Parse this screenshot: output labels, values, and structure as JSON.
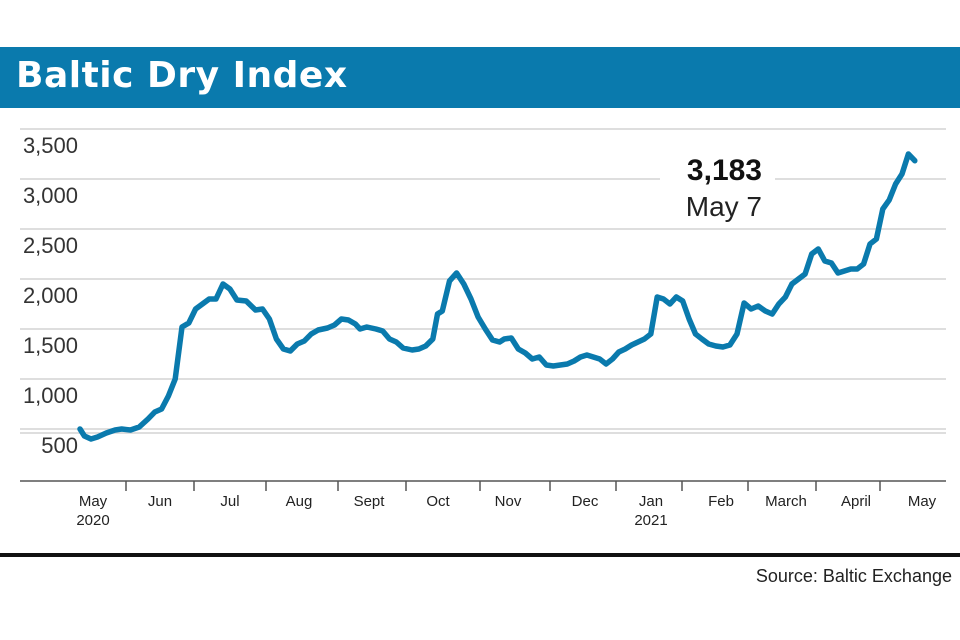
{
  "header": {
    "title": "Baltic Dry Index"
  },
  "source": "Source: Baltic Exchange",
  "colors": {
    "banner": "#0a7aad",
    "line": "#0a7aad",
    "grid": "#d4d4d4"
  },
  "chart_data": {
    "type": "line",
    "title": "Baltic Dry Index",
    "xlabel": "",
    "ylabel": "",
    "ylim": [
      100,
      3550
    ],
    "yticks": [
      {
        "value": 500,
        "label": "500"
      },
      {
        "value": 1000,
        "label": "1,000"
      },
      {
        "value": 1500,
        "label": "1,500"
      },
      {
        "value": 2000,
        "label": "2,000"
      },
      {
        "value": 2500,
        "label": "2,500"
      },
      {
        "value": 3000,
        "label": "3,000"
      },
      {
        "value": 3500,
        "label": "3,500"
      }
    ],
    "xlim": [
      "2020-05-01",
      "2021-05-31"
    ],
    "xticks": [
      {
        "date": "2020-05-01",
        "label": "May",
        "sublabel": "2020"
      },
      {
        "date": "2020-06-01",
        "label": "Jun"
      },
      {
        "date": "2020-07-01",
        "label": "Jul"
      },
      {
        "date": "2020-08-01",
        "label": "Aug"
      },
      {
        "date": "2020-09-01",
        "label": "Sept"
      },
      {
        "date": "2020-10-01",
        "label": "Oct"
      },
      {
        "date": "2020-11-01",
        "label": "Nov"
      },
      {
        "date": "2020-12-01",
        "label": "Dec"
      },
      {
        "date": "2021-01-01",
        "label": "Jan",
        "sublabel": "2021"
      },
      {
        "date": "2021-02-01",
        "label": "Feb"
      },
      {
        "date": "2021-03-01",
        "label": "March"
      },
      {
        "date": "2021-04-01",
        "label": "April"
      },
      {
        "date": "2021-05-01",
        "label": "May"
      }
    ],
    "grid": true,
    "legend": "none",
    "series": [
      {
        "points": [
          [
            "2020-05-01",
            500
          ],
          [
            "2020-05-03",
            430
          ],
          [
            "2020-05-06",
            400
          ],
          [
            "2020-05-09",
            420
          ],
          [
            "2020-05-13",
            460
          ],
          [
            "2020-05-17",
            490
          ],
          [
            "2020-05-20",
            500
          ],
          [
            "2020-05-24",
            490
          ],
          [
            "2020-05-28",
            520
          ],
          [
            "2020-06-01",
            600
          ],
          [
            "2020-06-04",
            670
          ],
          [
            "2020-06-07",
            700
          ],
          [
            "2020-06-10",
            830
          ],
          [
            "2020-06-13",
            1000
          ],
          [
            "2020-06-16",
            1520
          ],
          [
            "2020-06-19",
            1560
          ],
          [
            "2020-06-22",
            1700
          ],
          [
            "2020-06-25",
            1750
          ],
          [
            "2020-06-28",
            1800
          ],
          [
            "2020-07-01",
            1800
          ],
          [
            "2020-07-04",
            1950
          ],
          [
            "2020-07-07",
            1900
          ],
          [
            "2020-07-10",
            1790
          ],
          [
            "2020-07-14",
            1780
          ],
          [
            "2020-07-18",
            1690
          ],
          [
            "2020-07-21",
            1700
          ],
          [
            "2020-07-24",
            1600
          ],
          [
            "2020-07-27",
            1400
          ],
          [
            "2020-07-30",
            1300
          ],
          [
            "2020-08-02",
            1280
          ],
          [
            "2020-08-05",
            1350
          ],
          [
            "2020-08-08",
            1380
          ],
          [
            "2020-08-11",
            1450
          ],
          [
            "2020-08-14",
            1490
          ],
          [
            "2020-08-18",
            1510
          ],
          [
            "2020-08-21",
            1540
          ],
          [
            "2020-08-24",
            1600
          ],
          [
            "2020-08-27",
            1590
          ],
          [
            "2020-08-30",
            1550
          ],
          [
            "2020-09-01",
            1500
          ],
          [
            "2020-09-04",
            1520
          ],
          [
            "2020-09-08",
            1500
          ],
          [
            "2020-09-11",
            1480
          ],
          [
            "2020-09-14",
            1400
          ],
          [
            "2020-09-17",
            1370
          ],
          [
            "2020-09-20",
            1310
          ],
          [
            "2020-09-24",
            1290
          ],
          [
            "2020-09-27",
            1300
          ],
          [
            "2020-09-30",
            1330
          ],
          [
            "2020-10-03",
            1400
          ],
          [
            "2020-10-05",
            1650
          ],
          [
            "2020-10-07",
            1680
          ],
          [
            "2020-10-10",
            1980
          ],
          [
            "2020-10-13",
            2060
          ],
          [
            "2020-10-16",
            1950
          ],
          [
            "2020-10-19",
            1800
          ],
          [
            "2020-10-22",
            1620
          ],
          [
            "2020-10-25",
            1500
          ],
          [
            "2020-10-28",
            1390
          ],
          [
            "2020-10-31",
            1370
          ],
          [
            "2020-11-02",
            1400
          ],
          [
            "2020-11-05",
            1410
          ],
          [
            "2020-11-08",
            1300
          ],
          [
            "2020-11-11",
            1260
          ],
          [
            "2020-11-14",
            1200
          ],
          [
            "2020-11-17",
            1220
          ],
          [
            "2020-11-20",
            1140
          ],
          [
            "2020-11-23",
            1130
          ],
          [
            "2020-11-26",
            1140
          ],
          [
            "2020-11-29",
            1150
          ],
          [
            "2020-12-02",
            1180
          ],
          [
            "2020-12-05",
            1220
          ],
          [
            "2020-12-08",
            1240
          ],
          [
            "2020-12-11",
            1220
          ],
          [
            "2020-12-14",
            1200
          ],
          [
            "2020-12-17",
            1150
          ],
          [
            "2020-12-20",
            1200
          ],
          [
            "2020-12-23",
            1270
          ],
          [
            "2020-12-26",
            1300
          ],
          [
            "2020-12-29",
            1340
          ],
          [
            "2021-01-01",
            1370
          ],
          [
            "2021-01-04",
            1400
          ],
          [
            "2021-01-07",
            1450
          ],
          [
            "2021-01-10",
            1820
          ],
          [
            "2021-01-13",
            1800
          ],
          [
            "2021-01-16",
            1750
          ],
          [
            "2021-01-19",
            1820
          ],
          [
            "2021-01-22",
            1780
          ],
          [
            "2021-01-25",
            1600
          ],
          [
            "2021-01-28",
            1450
          ],
          [
            "2021-01-31",
            1400
          ],
          [
            "2021-02-03",
            1350
          ],
          [
            "2021-02-06",
            1330
          ],
          [
            "2021-02-09",
            1320
          ],
          [
            "2021-02-12",
            1340
          ],
          [
            "2021-02-15",
            1450
          ],
          [
            "2021-02-18",
            1760
          ],
          [
            "2021-02-21",
            1700
          ],
          [
            "2021-02-24",
            1730
          ],
          [
            "2021-02-27",
            1680
          ],
          [
            "2021-03-02",
            1650
          ],
          [
            "2021-03-05",
            1750
          ],
          [
            "2021-03-08",
            1820
          ],
          [
            "2021-03-11",
            1950
          ],
          [
            "2021-03-14",
            2000
          ],
          [
            "2021-03-17",
            2050
          ],
          [
            "2021-03-20",
            2250
          ],
          [
            "2021-03-23",
            2300
          ],
          [
            "2021-03-26",
            2180
          ],
          [
            "2021-03-29",
            2160
          ],
          [
            "2021-04-01",
            2060
          ],
          [
            "2021-04-04",
            2080
          ],
          [
            "2021-04-07",
            2100
          ],
          [
            "2021-04-10",
            2100
          ],
          [
            "2021-04-13",
            2150
          ],
          [
            "2021-04-16",
            2350
          ],
          [
            "2021-04-19",
            2400
          ],
          [
            "2021-04-22",
            2700
          ],
          [
            "2021-04-25",
            2790
          ],
          [
            "2021-04-28",
            2950
          ],
          [
            "2021-05-01",
            3050
          ],
          [
            "2021-05-04",
            3250
          ],
          [
            "2021-05-07",
            3183
          ]
        ]
      }
    ],
    "annotation": {
      "value": "3,183",
      "date": "May 7"
    }
  }
}
